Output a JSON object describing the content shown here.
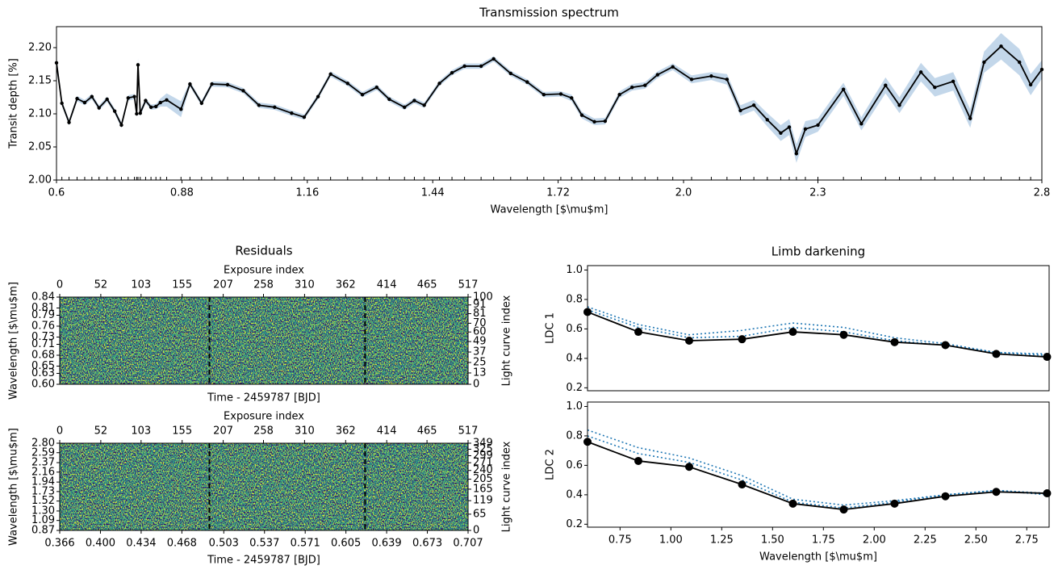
{
  "chart_data": [
    {
      "type": "line",
      "title": "Transmission spectrum",
      "xlabel": "Wavelength [$\\mu$m]",
      "ylabel": "Transit depth [%]",
      "x": [
        0.6,
        0.612,
        0.628,
        0.646,
        0.663,
        0.679,
        0.695,
        0.713,
        0.73,
        0.745,
        0.76,
        0.774,
        0.779,
        0.782,
        0.787,
        0.799,
        0.811,
        0.822,
        0.832,
        0.846,
        0.878,
        0.898,
        0.924,
        0.947,
        0.982,
        1.017,
        1.052,
        1.087,
        1.125,
        1.153,
        1.184,
        1.212,
        1.25,
        1.283,
        1.315,
        1.343,
        1.377,
        1.399,
        1.421,
        1.455,
        1.483,
        1.511,
        1.548,
        1.576,
        1.614,
        1.651,
        1.688,
        1.726,
        1.75,
        1.773,
        1.801,
        1.825,
        1.857,
        1.885,
        1.914,
        1.942,
        1.976,
        2.018,
        2.062,
        2.097,
        2.127,
        2.157,
        2.187,
        2.217,
        2.236,
        2.252,
        2.272,
        2.3,
        2.357,
        2.397,
        2.451,
        2.482,
        2.53,
        2.561,
        2.602,
        2.64,
        2.671,
        2.709,
        2.75,
        2.775,
        2.8
      ],
      "values": [
        2.177,
        2.116,
        2.087,
        2.123,
        2.117,
        2.126,
        2.109,
        2.122,
        2.104,
        2.083,
        2.124,
        2.126,
        2.1,
        2.174,
        2.101,
        2.12,
        2.11,
        2.111,
        2.117,
        2.121,
        2.107,
        2.145,
        2.116,
        2.145,
        2.144,
        2.135,
        2.113,
        2.11,
        2.101,
        2.095,
        2.126,
        2.16,
        2.146,
        2.129,
        2.14,
        2.122,
        2.11,
        2.12,
        2.113,
        2.146,
        2.162,
        2.172,
        2.172,
        2.183,
        2.161,
        2.148,
        2.129,
        2.13,
        2.124,
        2.098,
        2.088,
        2.089,
        2.129,
        2.14,
        2.143,
        2.159,
        2.171,
        2.152,
        2.157,
        2.152,
        2.105,
        2.113,
        2.091,
        2.071,
        2.08,
        2.04,
        2.077,
        2.083,
        2.137,
        2.085,
        2.143,
        2.113,
        2.163,
        2.14,
        2.149,
        2.093,
        2.178,
        2.202,
        2.178,
        2.144,
        2.167
      ],
      "errors": [
        0.01,
        0.004,
        0.004,
        0.004,
        0.004,
        0.004,
        0.004,
        0.004,
        0.004,
        0.004,
        0.004,
        0.004,
        0.005,
        0.01,
        0.005,
        0.004,
        0.004,
        0.004,
        0.006,
        0.01,
        0.012,
        0.004,
        0.004,
        0.004,
        0.004,
        0.004,
        0.004,
        0.004,
        0.004,
        0.004,
        0.004,
        0.004,
        0.004,
        0.004,
        0.004,
        0.004,
        0.004,
        0.004,
        0.004,
        0.004,
        0.004,
        0.004,
        0.004,
        0.004,
        0.004,
        0.004,
        0.004,
        0.004,
        0.005,
        0.005,
        0.005,
        0.005,
        0.005,
        0.005,
        0.005,
        0.005,
        0.005,
        0.006,
        0.006,
        0.008,
        0.008,
        0.008,
        0.01,
        0.012,
        0.012,
        0.014,
        0.012,
        0.01,
        0.01,
        0.01,
        0.012,
        0.012,
        0.014,
        0.014,
        0.014,
        0.014,
        0.016,
        0.02,
        0.02,
        0.016,
        0.014
      ],
      "color": "#000000",
      "band_color": "#c3d7ea",
      "xlim": [
        0.6,
        2.8
      ],
      "xticks": [
        0.6,
        0.88,
        1.16,
        1.44,
        1.72,
        {
          "value": 2.0,
          "label": "2.0"
        },
        2.3,
        2.8
      ],
      "ylim": [
        2.0,
        2.2317
      ],
      "yticks": [
        {
          "value": 2.0,
          "label": "2.00"
        },
        2.05,
        {
          "value": 2.1,
          "label": "2.10"
        },
        2.15,
        {
          "value": 2.2,
          "label": "2.20"
        }
      ]
    },
    {
      "type": "heatmap",
      "title": "Residuals",
      "colormap": "viridis",
      "x2label": "Exposure index",
      "xlabel": "Time - 2459787 [BJD]",
      "ylabel": "Wavelength [$\\mu$m]",
      "y2label": "Light curve index",
      "xlim": [
        0.366,
        0.707
      ],
      "x2lim": [
        0,
        517
      ],
      "x2ticks": [
        0,
        52,
        103,
        155,
        207,
        258,
        310,
        362,
        414,
        465,
        517
      ],
      "ylim": [
        0.6,
        0.84
      ],
      "yticks": [
        {
          "value": 0.6,
          "label": "0.60"
        },
        0.63,
        0.65,
        0.68,
        0.71,
        0.73,
        0.76,
        0.79,
        0.81,
        0.84
      ],
      "y2lim": [
        0,
        100
      ],
      "y2ticks": [
        0,
        13,
        25,
        37,
        49,
        60,
        70,
        81,
        91,
        100
      ],
      "vlines": [
        0.491,
        0.621
      ]
    },
    {
      "type": "heatmap",
      "colormap": "viridis",
      "x2label": "Exposure index",
      "xlabel": "Time - 2459787 [BJD]",
      "ylabel": "Wavelength [$\\mu$m]",
      "y2label": "Light curve index",
      "xlim": [
        0.366,
        0.707
      ],
      "xticks": [
        0.366,
        {
          "value": 0.4,
          "label": "0.400"
        },
        0.434,
        0.468,
        0.503,
        0.537,
        0.571,
        0.605,
        0.639,
        0.673,
        0.707
      ],
      "x2lim": [
        0,
        517
      ],
      "x2ticks": [
        0,
        52,
        103,
        155,
        207,
        258,
        310,
        362,
        414,
        465,
        517
      ],
      "ylim": [
        0.87,
        2.8
      ],
      "yticks": [
        0.87,
        1.09,
        {
          "value": 1.3,
          "label": "1.30"
        },
        1.52,
        1.73,
        1.94,
        2.16,
        2.37,
        2.59,
        {
          "value": 2.8,
          "label": "2.80"
        }
      ],
      "y2lim": [
        0,
        349
      ],
      "y2ticks": [
        0,
        65,
        119,
        165,
        205,
        240,
        271,
        299,
        325,
        349
      ],
      "vlines": [
        0.491,
        0.621
      ]
    },
    {
      "type": "line",
      "title": "Limb darkening",
      "ylabel": "LDC 1",
      "x": [
        0.59,
        0.84,
        1.09,
        1.35,
        1.6,
        1.85,
        2.1,
        2.35,
        2.6,
        2.85
      ],
      "series": [
        {
          "color": "#1f77b4",
          "style": "dotted",
          "values": [
            0.75,
            0.63,
            0.56,
            0.59,
            0.64,
            0.61,
            0.54,
            0.5,
            0.44,
            0.43
          ]
        },
        {
          "color": "#1f77b4",
          "style": "dotted",
          "values": [
            0.73,
            0.61,
            0.54,
            0.55,
            0.61,
            0.58,
            0.52,
            0.49,
            0.44,
            0.42
          ]
        },
        {
          "color": "#000000",
          "style": "solid",
          "markers": true,
          "values": [
            0.715,
            0.58,
            0.52,
            0.53,
            0.58,
            0.56,
            0.51,
            0.49,
            0.43,
            0.41
          ]
        }
      ],
      "xlim": [
        0.59,
        2.86
      ],
      "ylim": [
        0.18,
        1.03
      ],
      "yticks": [
        0.2,
        0.4,
        0.6,
        0.8,
        {
          "value": 1.0,
          "label": "1.0"
        }
      ]
    },
    {
      "type": "line",
      "ylabel": "LDC 2",
      "xlabel": "Wavelength [$\\mu$m]",
      "x": [
        0.59,
        0.84,
        1.09,
        1.35,
        1.6,
        1.85,
        2.1,
        2.35,
        2.6,
        2.85
      ],
      "series": [
        {
          "color": "#1f77b4",
          "style": "dotted",
          "values": [
            0.84,
            0.72,
            0.65,
            0.53,
            0.37,
            0.33,
            0.36,
            0.4,
            0.43,
            0.41
          ]
        },
        {
          "color": "#1f77b4",
          "style": "dotted",
          "values": [
            0.8,
            0.68,
            0.62,
            0.5,
            0.35,
            0.31,
            0.35,
            0.4,
            0.43,
            0.4
          ]
        },
        {
          "color": "#000000",
          "style": "solid",
          "markers": true,
          "values": [
            0.76,
            0.63,
            0.59,
            0.47,
            0.34,
            0.3,
            0.34,
            0.39,
            0.42,
            0.41
          ]
        }
      ],
      "xlim": [
        0.59,
        2.86
      ],
      "xticks": [
        0.75,
        {
          "value": 1.0,
          "label": "1.00"
        },
        1.25,
        {
          "value": 1.5,
          "label": "1.50"
        },
        1.75,
        {
          "value": 2.0,
          "label": "2.00"
        },
        2.25,
        {
          "value": 2.5,
          "label": "2.50"
        },
        2.75
      ],
      "ylim": [
        0.18,
        1.03
      ],
      "yticks": [
        0.2,
        0.4,
        0.6,
        0.8,
        {
          "value": 1.0,
          "label": "1.0"
        }
      ]
    }
  ]
}
